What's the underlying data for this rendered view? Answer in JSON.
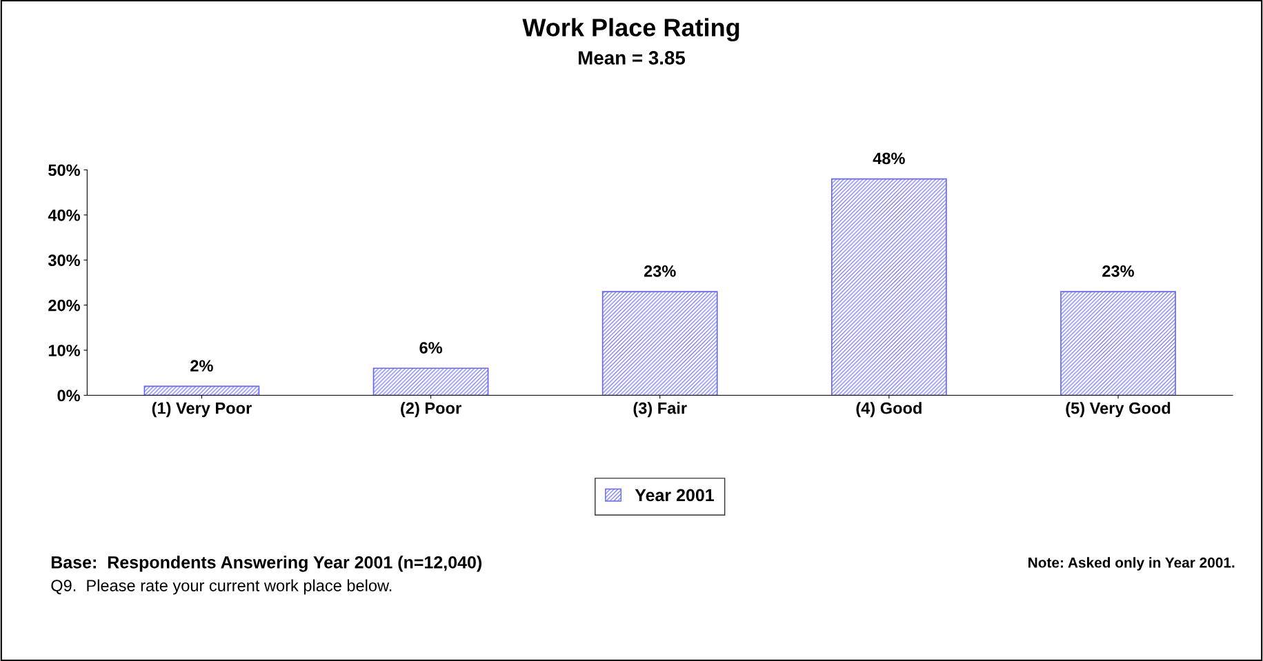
{
  "chart_data": {
    "type": "bar",
    "title": "Work Place Rating",
    "subtitle": "Mean = 3.85",
    "categories": [
      "(1) Very Poor",
      "(2) Poor",
      "(3) Fair",
      "(4) Good",
      "(5) Very Good"
    ],
    "series": [
      {
        "name": "Year 2001",
        "color": "#6666ff",
        "values": [
          2,
          6,
          23,
          48,
          23
        ],
        "value_labels": [
          "2%",
          "6%",
          "23%",
          "48%",
          "23%"
        ]
      }
    ],
    "ylim": [
      0,
      50
    ],
    "yticks": [
      {
        "value": 0,
        "label": "0%"
      },
      {
        "value": 10,
        "label": "10%"
      },
      {
        "value": 20,
        "label": "20%"
      },
      {
        "value": 30,
        "label": "30%"
      },
      {
        "value": 40,
        "label": "40%"
      },
      {
        "value": 50,
        "label": "50%"
      }
    ],
    "legend": "bottom",
    "annotations": [
      "Base:  Respondents Answering Year 2001 (n=12,040)",
      "Q9.  Please rate your current work place below.",
      "Note: Asked only in Year 2001."
    ]
  }
}
